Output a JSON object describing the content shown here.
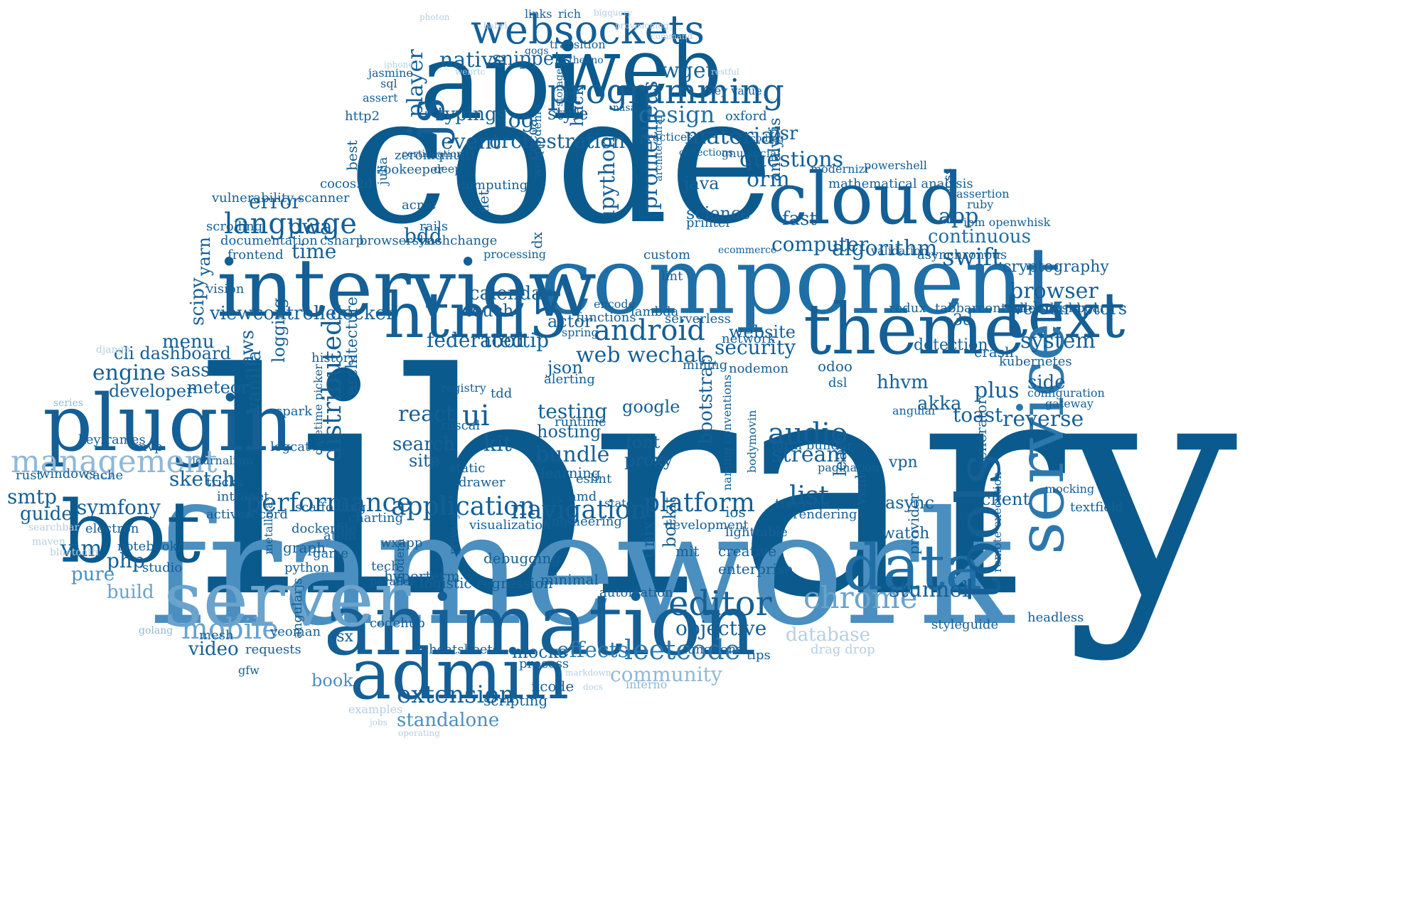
{
  "words": [
    {
      "text": "library",
      "color": "#0b5a8e"
    },
    {
      "text": "framework",
      "color": "#4a8fbf"
    },
    {
      "text": "code",
      "color": "#0b5a8e"
    },
    {
      "text": "component",
      "color": "#1f6fa6"
    },
    {
      "text": "interview",
      "color": "#145f96"
    },
    {
      "text": "api",
      "color": "#0b5a8e"
    },
    {
      "text": "web",
      "color": "#0b5a8e"
    },
    {
      "text": "animation",
      "color": "#145f96"
    },
    {
      "text": "admin",
      "color": "#145f96"
    },
    {
      "text": "plugin",
      "color": "#145f96"
    },
    {
      "text": "bot",
      "color": "#0b5a8e"
    },
    {
      "text": "server",
      "color": "#6aa3cc"
    },
    {
      "text": "cloud",
      "color": "#145f96"
    },
    {
      "text": "theme",
      "color": "#145f96"
    },
    {
      "text": "text",
      "color": "#145f96"
    },
    {
      "text": "service",
      "color": "#2c78ad"
    },
    {
      "text": "data",
      "color": "#1f6fa6"
    },
    {
      "text": "tools",
      "color": "#145f96"
    },
    {
      "text": "html5",
      "color": "#145f96"
    },
    {
      "text": "js",
      "color": "#145f96"
    },
    {
      "text": "websockets",
      "color": "#145f96"
    },
    {
      "text": "programming",
      "color": "#145f96"
    },
    {
      "text": "management",
      "color": "#8fb8d8"
    },
    {
      "text": "mobile",
      "color": "#6aa3cc"
    },
    {
      "text": "chrome",
      "color": "#6aa3cc"
    },
    {
      "text": "editor",
      "color": "#145f96"
    },
    {
      "text": "leetcode",
      "color": "#2c78ad"
    },
    {
      "text": "android",
      "color": "#145f96"
    },
    {
      "text": "language",
      "color": "#145f96"
    },
    {
      "text": "performance",
      "color": "#145f96"
    },
    {
      "text": "application",
      "color": "#145f96"
    },
    {
      "text": "navigation",
      "color": "#145f96"
    },
    {
      "text": "platform",
      "color": "#145f96"
    },
    {
      "text": "extension",
      "color": "#145f96"
    },
    {
      "text": "audio",
      "color": "#145f96"
    },
    {
      "text": "distributed",
      "color": "#145f96"
    },
    {
      "text": "design",
      "color": "#1f6fa6"
    },
    {
      "text": "material",
      "color": "#145f96"
    },
    {
      "text": "orchestration",
      "color": "#145f96"
    },
    {
      "text": "questions",
      "color": "#145f96"
    },
    {
      "text": "algorithm",
      "color": "#145f96"
    },
    {
      "text": "computer",
      "color": "#145f96"
    },
    {
      "text": "continuous",
      "color": "#1f6fa6"
    },
    {
      "text": "swift",
      "color": "#145f96"
    },
    {
      "text": "browser",
      "color": "#145f96"
    },
    {
      "text": "system",
      "color": "#145f96"
    },
    {
      "text": "reverse",
      "color": "#145f96"
    },
    {
      "text": "list",
      "color": "#145f96"
    },
    {
      "text": "stream",
      "color": "#145f96"
    },
    {
      "text": "security",
      "color": "#145f96"
    },
    {
      "text": "web wechat",
      "color": "#145f96"
    },
    {
      "text": "testing",
      "color": "#145f96"
    },
    {
      "text": "bundle",
      "color": "#145f96"
    },
    {
      "text": "react",
      "color": "#145f96"
    },
    {
      "text": "ui",
      "color": "#145f96"
    },
    {
      "text": "search",
      "color": "#145f96"
    },
    {
      "text": "kit",
      "color": "#145f96"
    },
    {
      "text": "effects",
      "color": "#2c78ad"
    },
    {
      "text": "community",
      "color": "#8fb8d8"
    },
    {
      "text": "database",
      "color": "#b5cfe4"
    },
    {
      "text": "stunnel",
      "color": "#145f96"
    },
    {
      "text": "objective",
      "color": "#145f96"
    },
    {
      "text": "standalone",
      "color": "#4a8fbf"
    },
    {
      "text": "engine",
      "color": "#145f96"
    },
    {
      "text": "symfony",
      "color": "#145f96"
    },
    {
      "text": "sketch",
      "color": "#145f96"
    },
    {
      "text": "smtp",
      "color": "#145f96"
    },
    {
      "text": "guide",
      "color": "#145f96"
    },
    {
      "text": "vim",
      "color": "#145f96"
    },
    {
      "text": "php",
      "color": "#145f96"
    },
    {
      "text": "pure",
      "color": "#4a8fbf"
    },
    {
      "text": "build",
      "color": "#6aa3cc"
    },
    {
      "text": "video",
      "color": "#145f96"
    },
    {
      "text": "book",
      "color": "#4a8fbf"
    },
    {
      "text": "time",
      "color": "#145f96"
    },
    {
      "text": "pwa",
      "color": "#145f96"
    },
    {
      "text": "error",
      "color": "#145f96"
    },
    {
      "text": "menu",
      "color": "#145f96"
    },
    {
      "text": "sass",
      "color": "#145f96"
    },
    {
      "text": "meteor",
      "color": "#145f96"
    },
    {
      "text": "developer",
      "color": "#145f96"
    },
    {
      "text": "cli dashboard",
      "color": "#145f96"
    },
    {
      "text": "viewcontroller",
      "color": "#145f96"
    },
    {
      "text": "docker",
      "color": "#145f96"
    },
    {
      "text": "calendar",
      "color": "#145f96"
    },
    {
      "text": "federated",
      "color": "#145f96"
    },
    {
      "text": "tooltip",
      "color": "#145f96"
    },
    {
      "text": "touch",
      "color": "#145f96"
    },
    {
      "text": "event",
      "color": "#145f96"
    },
    {
      "text": "log",
      "color": "#145f96"
    },
    {
      "text": "typings",
      "color": "#145f96"
    },
    {
      "text": "native",
      "color": "#145f96"
    },
    {
      "text": "snippets",
      "color": "#145f96"
    },
    {
      "text": "player",
      "color": "#145f96"
    },
    {
      "text": "wget",
      "color": "#145f96"
    },
    {
      "text": "style",
      "color": "#145f96"
    },
    {
      "text": "hack",
      "color": "#145f96"
    },
    {
      "text": "prometheus",
      "color": "#145f96"
    },
    {
      "text": "ipython",
      "color": "#145f96"
    },
    {
      "text": "orm",
      "color": "#145f96"
    },
    {
      "text": "psr",
      "color": "#145f96"
    },
    {
      "text": "fast",
      "color": "#145f96"
    },
    {
      "text": "app",
      "color": "#145f96"
    },
    {
      "text": "java",
      "color": "#145f96"
    },
    {
      "text": "science",
      "color": "#145f96"
    },
    {
      "text": "plus",
      "color": "#145f96"
    },
    {
      "text": "side",
      "color": "#145f96"
    },
    {
      "text": "toast",
      "color": "#145f96"
    },
    {
      "text": "akka",
      "color": "#145f96"
    },
    {
      "text": "hhvm",
      "color": "#145f96"
    },
    {
      "text": "velociraptors",
      "color": "#145f96"
    },
    {
      "text": "cryptography",
      "color": "#145f96"
    },
    {
      "text": "website",
      "color": "#145f96"
    },
    {
      "text": "aws",
      "color": "#145f96"
    },
    {
      "text": "scipy",
      "color": "#145f96"
    },
    {
      "text": "yarn",
      "color": "#145f96"
    },
    {
      "text": "json",
      "color": "#145f96"
    },
    {
      "text": "actor",
      "color": "#145f96"
    },
    {
      "text": "hosting",
      "color": "#145f96"
    },
    {
      "text": "site",
      "color": "#145f96"
    },
    {
      "text": "vanilla",
      "color": "#145f96"
    },
    {
      "text": "logging",
      "color": "#145f96"
    },
    {
      "text": "architecture",
      "color": "#145f96"
    },
    {
      "text": "google",
      "color": "#145f96"
    },
    {
      "text": "font",
      "color": "#145f96"
    },
    {
      "text": "proxy",
      "color": "#145f96"
    },
    {
      "text": "bootstrap",
      "color": "#145f96"
    },
    {
      "text": "learn",
      "color": "#145f96"
    },
    {
      "text": "vpn",
      "color": "#145f96"
    },
    {
      "text": "async",
      "color": "#145f96"
    },
    {
      "text": "watch",
      "color": "#145f96"
    },
    {
      "text": "client",
      "color": "#145f96"
    },
    {
      "text": "detection",
      "color": "#145f96"
    },
    {
      "text": "unix",
      "color": "#145f96"
    },
    {
      "text": "botkit",
      "color": "#145f96"
    },
    {
      "text": "mit",
      "color": "#145f96"
    },
    {
      "text": "creative",
      "color": "#145f96"
    },
    {
      "text": "enterprise",
      "color": "#145f96"
    },
    {
      "text": "lighttable",
      "color": "#145f96"
    },
    {
      "text": "ios",
      "color": "#145f96"
    },
    {
      "text": "mocks",
      "color": "#145f96"
    },
    {
      "text": "process",
      "color": "#145f96"
    },
    {
      "text": "xcode",
      "color": "#145f96"
    },
    {
      "text": "scripting",
      "color": "#145f96"
    },
    {
      "text": "debugging",
      "color": "#145f96"
    },
    {
      "text": "automation",
      "color": "#145f96"
    },
    {
      "text": "minimal",
      "color": "#145f96"
    },
    {
      "text": "logistic regression",
      "color": "#145f96"
    },
    {
      "text": "cheatsheets",
      "color": "#145f96"
    },
    {
      "text": "hyperterm",
      "color": "#145f96"
    },
    {
      "text": "tech",
      "color": "#145f96"
    },
    {
      "text": "parallel",
      "color": "#145f96"
    },
    {
      "text": "modern",
      "color": "#145f96"
    },
    {
      "text": "codehub",
      "color": "#145f96"
    },
    {
      "text": "osx",
      "color": "#145f96"
    },
    {
      "text": "angularjs",
      "color": "#145f96"
    },
    {
      "text": "yeoman",
      "color": "#145f96"
    },
    {
      "text": "requests",
      "color": "#145f96"
    },
    {
      "text": "gfw",
      "color": "#145f96"
    },
    {
      "text": "mesh",
      "color": "#145f96"
    },
    {
      "text": "notebook",
      "color": "#145f96"
    },
    {
      "text": "studio",
      "color": "#145f96"
    },
    {
      "text": "python",
      "color": "#145f96"
    },
    {
      "text": "graph",
      "color": "#145f96"
    },
    {
      "text": "dockerfile",
      "color": "#145f96"
    },
    {
      "text": "metallica",
      "color": "#145f96"
    },
    {
      "text": "atom",
      "color": "#145f96"
    },
    {
      "text": "game",
      "color": "#145f96"
    },
    {
      "text": "charting",
      "color": "#145f96"
    },
    {
      "text": "scaffolding",
      "color": "#145f96"
    },
    {
      "text": "activerecord",
      "color": "#145f96"
    },
    {
      "text": "intranet",
      "color": "#145f96"
    },
    {
      "text": "electron",
      "color": "#145f96"
    },
    {
      "text": "mvp",
      "color": "#145f96"
    },
    {
      "text": "keyframes",
      "color": "#145f96"
    },
    {
      "text": "journalism",
      "color": "#145f96"
    },
    {
      "text": "windows",
      "color": "#145f96"
    },
    {
      "text": "cache",
      "color": "#145f96"
    },
    {
      "text": "rust",
      "color": "#145f96"
    },
    {
      "text": "logcat",
      "color": "#145f96"
    },
    {
      "text": "datetime picker",
      "color": "#145f96"
    },
    {
      "text": "spark",
      "color": "#145f96"
    },
    {
      "text": "history",
      "color": "#145f96"
    },
    {
      "text": "tdd",
      "color": "#145f96"
    },
    {
      "text": "rascal",
      "color": "#145f96"
    },
    {
      "text": "static",
      "color": "#145f96"
    },
    {
      "text": "drawer",
      "color": "#145f96"
    },
    {
      "text": "runtime",
      "color": "#145f96"
    },
    {
      "text": "learning",
      "color": "#145f96"
    },
    {
      "text": "eslint",
      "color": "#145f96"
    },
    {
      "text": "amd",
      "color": "#145f96"
    },
    {
      "text": "state",
      "color": "#145f96"
    },
    {
      "text": "engineering",
      "color": "#145f96"
    },
    {
      "text": "visualization",
      "color": "#145f96"
    },
    {
      "text": "development",
      "color": "#145f96"
    },
    {
      "text": "rendering",
      "color": "#145f96"
    },
    {
      "text": "treeview",
      "color": "#145f96"
    },
    {
      "text": "provider",
      "color": "#145f96"
    },
    {
      "text": "generator",
      "color": "#145f96"
    },
    {
      "text": "remote execution",
      "color": "#145f96"
    },
    {
      "text": "textfield",
      "color": "#145f96"
    },
    {
      "text": "mocking",
      "color": "#145f96"
    },
    {
      "text": "headless",
      "color": "#145f96"
    },
    {
      "text": "styleguide",
      "color": "#145f96"
    },
    {
      "text": "drag drop",
      "color": "#b5cfe4"
    },
    {
      "text": "tips",
      "color": "#145f96"
    },
    {
      "text": "functional",
      "color": "#145f96"
    },
    {
      "text": "inferno",
      "color": "#8fb8d8"
    },
    {
      "text": "form builder",
      "color": "#145f96"
    },
    {
      "text": "pagination",
      "color": "#145f96"
    },
    {
      "text": "naming conventions",
      "color": "#145f96"
    },
    {
      "text": "bodymovin",
      "color": "#145f96"
    },
    {
      "text": "nodemon",
      "color": "#145f96"
    },
    {
      "text": "odoo",
      "color": "#145f96"
    },
    {
      "text": "dsl",
      "color": "#145f96"
    },
    {
      "text": "3d",
      "color": "#145f96"
    },
    {
      "text": "crash",
      "color": "#145f96"
    },
    {
      "text": "kubernetes",
      "color": "#145f96"
    },
    {
      "text": "configuration",
      "color": "#145f96"
    },
    {
      "text": "gateway",
      "color": "#145f96"
    },
    {
      "text": "tabbarcontroller dashboard",
      "color": "#145f96"
    },
    {
      "text": "redux",
      "color": "#145f96"
    },
    {
      "text": "network",
      "color": "#145f96"
    },
    {
      "text": "serverless",
      "color": "#145f96"
    },
    {
      "text": "lambda",
      "color": "#145f96"
    },
    {
      "text": "lint",
      "color": "#145f96"
    },
    {
      "text": "encode",
      "color": "#145f96"
    },
    {
      "text": "functions",
      "color": "#145f96"
    },
    {
      "text": "spring",
      "color": "#145f96"
    },
    {
      "text": "alerting",
      "color": "#145f96"
    },
    {
      "text": "mining",
      "color": "#145f96"
    },
    {
      "text": "analysis",
      "color": "#145f96"
    },
    {
      "text": "documentation",
      "color": "#145f96"
    },
    {
      "text": "frontend",
      "color": "#145f96"
    },
    {
      "text": "scrolling",
      "color": "#145f96"
    },
    {
      "text": "vulnerability scanner",
      "color": "#145f96"
    },
    {
      "text": "cocos2d",
      "color": "#145f96"
    },
    {
      "text": "zookeeper",
      "color": "#145f96"
    },
    {
      "text": "julia",
      "color": "#145f96"
    },
    {
      "text": "zeromq",
      "color": "#145f96"
    },
    {
      "text": "computing",
      "color": "#145f96"
    },
    {
      "text": "net",
      "color": "#145f96"
    },
    {
      "text": "acme",
      "color": "#145f96"
    },
    {
      "text": "rails",
      "color": "#145f96"
    },
    {
      "text": "csharp",
      "color": "#145f96"
    },
    {
      "text": "browsersync",
      "color": "#145f96"
    },
    {
      "text": "hashchange",
      "color": "#145f96"
    },
    {
      "text": "processing",
      "color": "#145f96"
    },
    {
      "text": "dx",
      "color": "#145f96"
    },
    {
      "text": "cocoa",
      "color": "#145f96"
    },
    {
      "text": "weapp demo",
      "color": "#145f96"
    },
    {
      "text": "custom",
      "color": "#145f96"
    },
    {
      "text": "printer",
      "color": "#145f96"
    },
    {
      "text": "mathematical analysis",
      "color": "#145f96"
    },
    {
      "text": "modernizr",
      "color": "#145f96"
    },
    {
      "text": "powershell",
      "color": "#145f96"
    },
    {
      "text": "assertion",
      "color": "#145f96"
    },
    {
      "text": "ruby",
      "color": "#145f96"
    },
    {
      "text": "ibm openwhisk",
      "color": "#145f96"
    },
    {
      "text": "asynchronous",
      "color": "#145f96"
    },
    {
      "text": "validation",
      "color": "#145f96"
    },
    {
      "text": "ecommerce",
      "color": "#145f96"
    },
    {
      "text": "css",
      "color": "#145f96"
    },
    {
      "text": "multi",
      "color": "#145f96"
    },
    {
      "text": "deep",
      "color": "#145f96"
    },
    {
      "text": "certification",
      "color": "#145f96"
    },
    {
      "text": "best",
      "color": "#145f96"
    },
    {
      "text": "http2",
      "color": "#145f96"
    },
    {
      "text": "assert",
      "color": "#145f96"
    },
    {
      "text": "sql",
      "color": "#145f96"
    },
    {
      "text": "jasmine",
      "color": "#145f96"
    },
    {
      "text": "links",
      "color": "#145f96"
    },
    {
      "text": "rich",
      "color": "#145f96"
    },
    {
      "text": "transition",
      "color": "#145f96"
    },
    {
      "text": "theano",
      "color": "#145f96"
    },
    {
      "text": "gogs",
      "color": "#145f96"
    },
    {
      "text": "storage",
      "color": "#145f96"
    },
    {
      "text": "nasa",
      "color": "#145f96"
    },
    {
      "text": "oxford",
      "color": "#145f96"
    },
    {
      "text": "collections",
      "color": "#145f96"
    },
    {
      "text": "gnu social",
      "color": "#145f96"
    },
    {
      "text": "key value",
      "color": "#145f96"
    },
    {
      "text": "coding",
      "color": "#145f96"
    },
    {
      "text": "practices",
      "color": "#145f96"
    },
    {
      "text": "architectural",
      "color": "#145f96"
    },
    {
      "text": "vision",
      "color": "#145f96"
    },
    {
      "text": "tricks",
      "color": "#145f96"
    },
    {
      "text": "registry",
      "color": "#145f96"
    },
    {
      "text": "angular",
      "color": "#145f96"
    },
    {
      "text": "viml",
      "color": "#145f96"
    },
    {
      "text": "privacy",
      "color": "#145f96"
    },
    {
      "text": "wxapp",
      "color": "#145f96"
    },
    {
      "text": "bdd",
      "color": "#145f96"
    },
    {
      "text": "examples",
      "color": "#b5cfe4"
    },
    {
      "text": "bluetooth",
      "color": "#b5cfe4"
    },
    {
      "text": "golang",
      "color": "#8fb8d8"
    },
    {
      "text": "searchbar",
      "color": "#b5cfe4"
    },
    {
      "text": "maven",
      "color": "#b5cfe4"
    },
    {
      "text": "series",
      "color": "#8fb8d8"
    },
    {
      "text": "django",
      "color": "#b5cfe4"
    },
    {
      "text": "photon",
      "color": "#b5cfe4"
    },
    {
      "text": "babel",
      "color": "#b5cfe4"
    },
    {
      "text": "iphone",
      "color": "#b5cfe4"
    },
    {
      "text": "webrtc",
      "color": "#b5cfe4"
    },
    {
      "text": "bigquery",
      "color": "#b5cfe4"
    },
    {
      "text": "provisioning",
      "color": "#b5cfe4"
    },
    {
      "text": "command",
      "color": "#b5cfe4"
    },
    {
      "text": "restful",
      "color": "#b5cfe4"
    },
    {
      "text": "markdown",
      "color": "#b5cfe4"
    },
    {
      "text": "docs",
      "color": "#b5cfe4"
    },
    {
      "text": "jobs",
      "color": "#b5cfe4"
    },
    {
      "text": "operating",
      "color": "#b5cfe4"
    }
  ]
}
